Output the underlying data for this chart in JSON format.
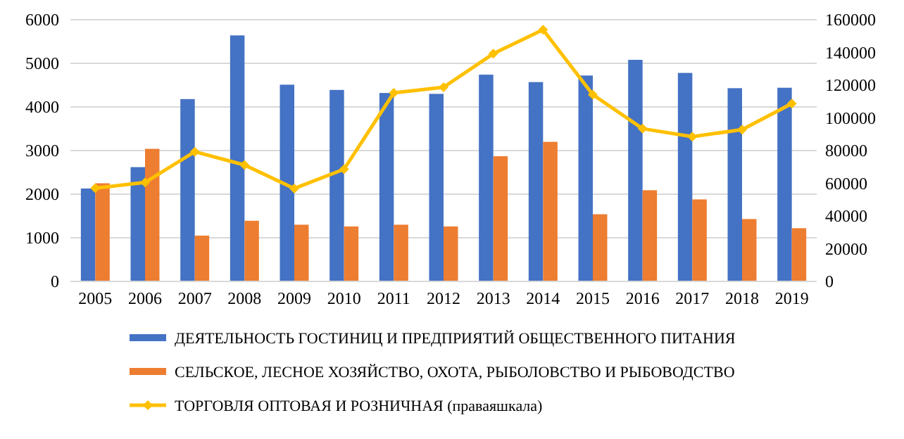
{
  "chart_data": {
    "type": "bar",
    "categories": [
      "2005",
      "2006",
      "2007",
      "2008",
      "2009",
      "2010",
      "2011",
      "2012",
      "2013",
      "2014",
      "2015",
      "2016",
      "2017",
      "2018",
      "2019"
    ],
    "series": [
      {
        "name": "ДЕЯТЕЛЬНОСТЬ ГОСТИНИЦ И ПРЕДПРИЯТИЙ ОБЩЕСТВЕННОГО ПИТАНИЯ",
        "color": "#4472c4",
        "values": [
          2130,
          2620,
          4180,
          5640,
          4510,
          4390,
          4320,
          4300,
          4740,
          4570,
          4720,
          5080,
          4780,
          4430,
          4440
        ]
      },
      {
        "name": "СЕЛЬСКОЕ, ЛЕСНОЕ ХОЗЯЙСТВО, ОХОТА, РЫБОЛОВСТВО И РЫБОВОДСТВО",
        "color": "#ed7d31",
        "values": [
          2250,
          3040,
          1050,
          1390,
          1300,
          1260,
          1300,
          1260,
          2870,
          3200,
          1540,
          2090,
          1880,
          1430,
          1220
        ]
      },
      {
        "name": "ТОРГОВЛЯ ОПТОВАЯ И РОЗНИЧНАЯ (праваяшкала)",
        "type": "line",
        "axis": "y2",
        "color": "#ffc000",
        "values": [
          57000,
          60500,
          79300,
          71200,
          56800,
          68600,
          115300,
          118700,
          139200,
          153900,
          114200,
          93400,
          88500,
          92800,
          108700
        ]
      }
    ],
    "ylim": [
      0,
      6000
    ],
    "yticks": [
      0,
      1000,
      2000,
      3000,
      4000,
      5000,
      6000
    ],
    "y2lim": [
      0,
      160000
    ],
    "y2ticks": [
      0,
      20000,
      40000,
      60000,
      80000,
      100000,
      120000,
      140000,
      160000
    ],
    "grid": "y",
    "legend": "bottom",
    "marker": "diamond"
  }
}
